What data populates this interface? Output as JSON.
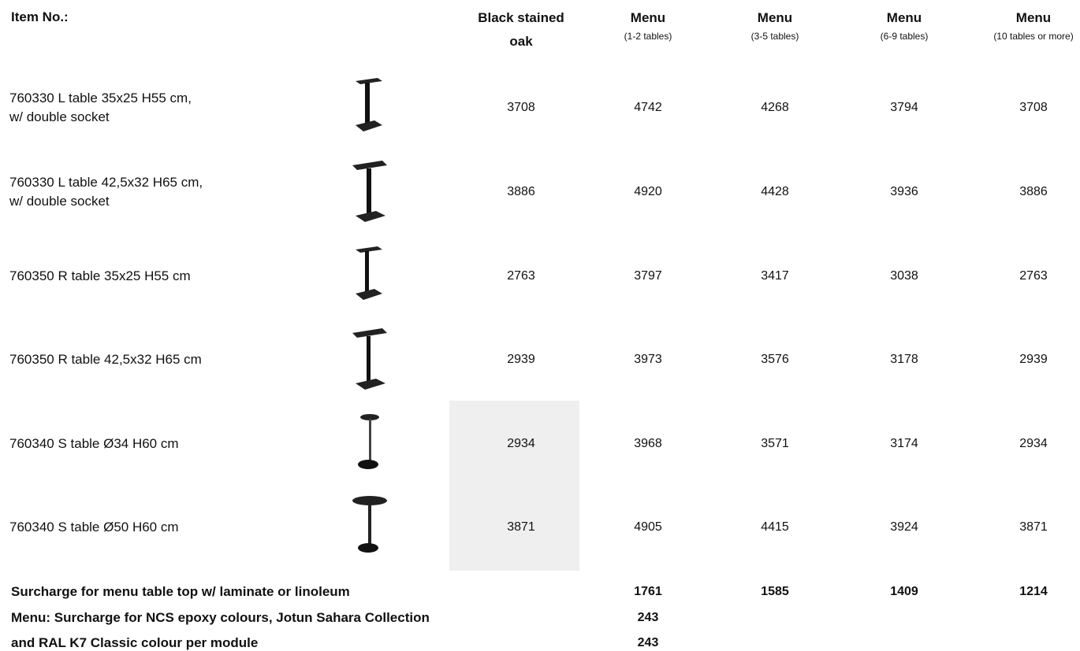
{
  "header": {
    "item": "Item No.:",
    "columns": [
      {
        "title": [
          "Black stained",
          "oak"
        ]
      },
      {
        "title": [
          "Menu"
        ],
        "sub": "(1-2 tables)"
      },
      {
        "title": [
          "Menu"
        ],
        "sub": "(3-5 tables)"
      },
      {
        "title": [
          "Menu"
        ],
        "sub": "(6-9 tables)"
      },
      {
        "title": [
          "Menu"
        ],
        "sub": "(10 tables or more)"
      }
    ]
  },
  "rows": [
    {
      "label": [
        "760330 L table 35x25 H55 cm,",
        "w/ double socket"
      ],
      "values": [
        3708,
        4742,
        4268,
        3794,
        3708
      ]
    },
    {
      "label": [
        "760330 L table 42,5x32 H65 cm,",
        "w/ double socket"
      ],
      "values": [
        3886,
        4920,
        4428,
        3936,
        3886
      ]
    },
    {
      "label": [
        "760350 R table 35x25 H55 cm"
      ],
      "values": [
        2763,
        3797,
        3417,
        3038,
        2763
      ]
    },
    {
      "label": [
        "760350 R table 42,5x32 H65 cm"
      ],
      "values": [
        2939,
        3973,
        3576,
        3178,
        2939
      ]
    },
    {
      "label": [
        "760340 S table Ø34 H60 cm"
      ],
      "values": [
        2934,
        3968,
        3571,
        3174,
        2934
      ]
    },
    {
      "label": [
        "760340 S table Ø50 H60 cm"
      ],
      "values": [
        3871,
        4905,
        4415,
        3924,
        3871
      ]
    }
  ],
  "surcharges": [
    {
      "label": "Surcharge for menu table top w/ laminate or linoleum",
      "values": [
        1761,
        1585,
        1409,
        1214
      ]
    },
    {
      "label": "Menu: Surcharge for NCS epoxy colours, Jotun Sahara Collection",
      "values": [
        243
      ]
    },
    {
      "label": "and RAL K7 Classic colour per module",
      "values": [
        243
      ]
    }
  ]
}
